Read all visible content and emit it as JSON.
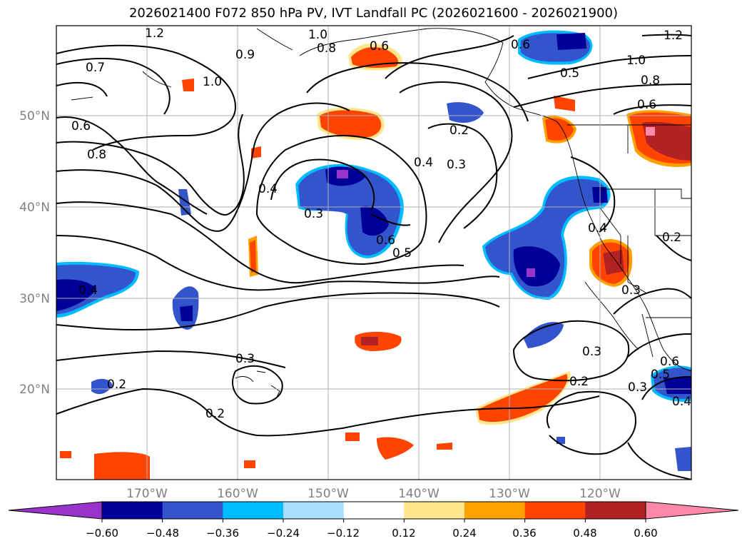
{
  "title": "2026021400 F072 850 hPa PV, IVT Landfall PC (2026021600 - 2026021900)",
  "axes": {
    "lon_labels": [
      "170°W",
      "160°W",
      "150°W",
      "140°W",
      "130°W",
      "120°W"
    ],
    "lat_labels": [
      "50°N",
      "40°N",
      "30°N",
      "20°N"
    ],
    "label_color": "#808080"
  },
  "contour_labels": [
    "1.2",
    "1.0",
    "0.8",
    "0.6",
    "0.9",
    "0.7",
    "0.6",
    "0.8",
    "1.0",
    "0.4",
    "0.3",
    "0.6",
    "0.5",
    "0.4",
    "0.3",
    "0.2",
    "0.6",
    "0.5",
    "0.8",
    "1.0",
    "0.6",
    "1.2",
    "0.4",
    "0.3",
    "0.2",
    "0.3",
    "0.2",
    "0.3",
    "0.2",
    "0.3",
    "0.6",
    "0.5",
    "0.4",
    "0.2",
    "0.4"
  ],
  "colorbar": {
    "tick_labels": [
      "−0.60",
      "−0.48",
      "−0.36",
      "−0.24",
      "−0.12",
      "0.12",
      "0.24",
      "0.36",
      "0.48",
      "0.60"
    ],
    "colors": [
      "#9933cc",
      "#000099",
      "#3355cc",
      "#00bbff",
      "#aaddff",
      "#ffffff",
      "#ffe68a",
      "#ffa000",
      "#ff4400",
      "#b22222",
      "#ff88aa"
    ]
  }
}
